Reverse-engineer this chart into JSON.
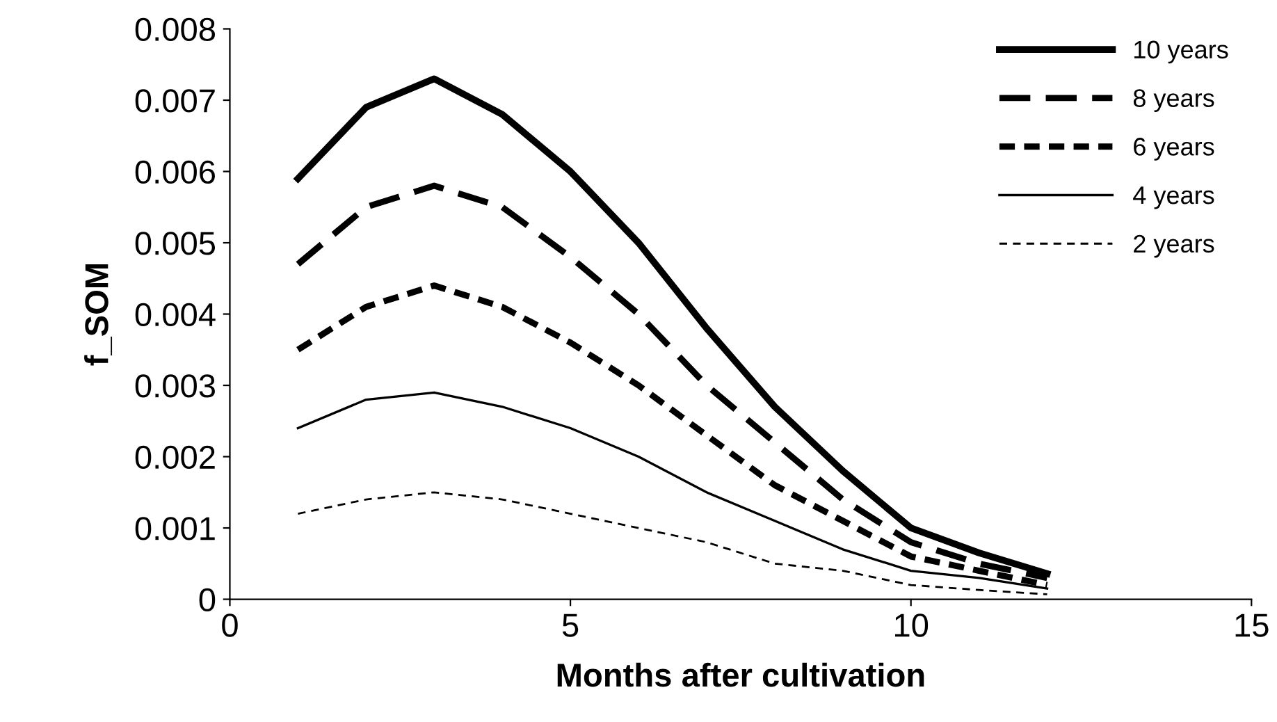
{
  "chart_data": {
    "type": "line",
    "xlabel": "Months after cultivation",
    "ylabel": "f_SOM",
    "x": [
      1,
      2,
      3,
      4,
      5,
      6,
      7,
      8,
      9,
      10,
      11,
      12
    ],
    "series": [
      {
        "name": "10 years",
        "color": "#000000",
        "line_style": "solid",
        "values": [
          0.0059,
          0.0069,
          0.0073,
          0.0068,
          0.006,
          0.005,
          0.0038,
          0.0027,
          0.0018,
          0.001,
          0.00065,
          0.00036
        ]
      },
      {
        "name": "8 years",
        "color": "#000000",
        "line_style": "dashed",
        "values": [
          0.0047,
          0.0055,
          0.0058,
          0.0055,
          0.0048,
          0.004,
          0.003,
          0.0022,
          0.0014,
          0.0008,
          0.0005,
          0.0003
        ]
      },
      {
        "name": "6 years",
        "color": "#000000",
        "line_style": "dotted",
        "values": [
          0.0035,
          0.0041,
          0.0044,
          0.0041,
          0.0036,
          0.003,
          0.0023,
          0.0016,
          0.0011,
          0.0006,
          0.0004,
          0.0002
        ]
      },
      {
        "name": "4 years",
        "color": "#000000",
        "line_style": "solid",
        "values": [
          0.0024,
          0.0028,
          0.0029,
          0.0027,
          0.0024,
          0.002,
          0.0015,
          0.0011,
          0.0007,
          0.0004,
          0.0003,
          0.00015
        ]
      },
      {
        "name": "2 years",
        "color": "#000000",
        "line_style": "dotted",
        "values": [
          0.0012,
          0.0014,
          0.0015,
          0.0014,
          0.0012,
          0.001,
          0.0008,
          0.0005,
          0.0004,
          0.0002,
          0.00013,
          7e-05
        ]
      }
    ],
    "xlim": [
      0,
      15
    ],
    "xticks": [
      0,
      5,
      10,
      15
    ],
    "ylim": [
      0,
      0.008
    ],
    "yticks": [
      0,
      0.001,
      0.002,
      0.003,
      0.004,
      0.005,
      0.006,
      0.007,
      0.008
    ],
    "grid": false,
    "legend": "top right",
    "marker": "none"
  }
}
